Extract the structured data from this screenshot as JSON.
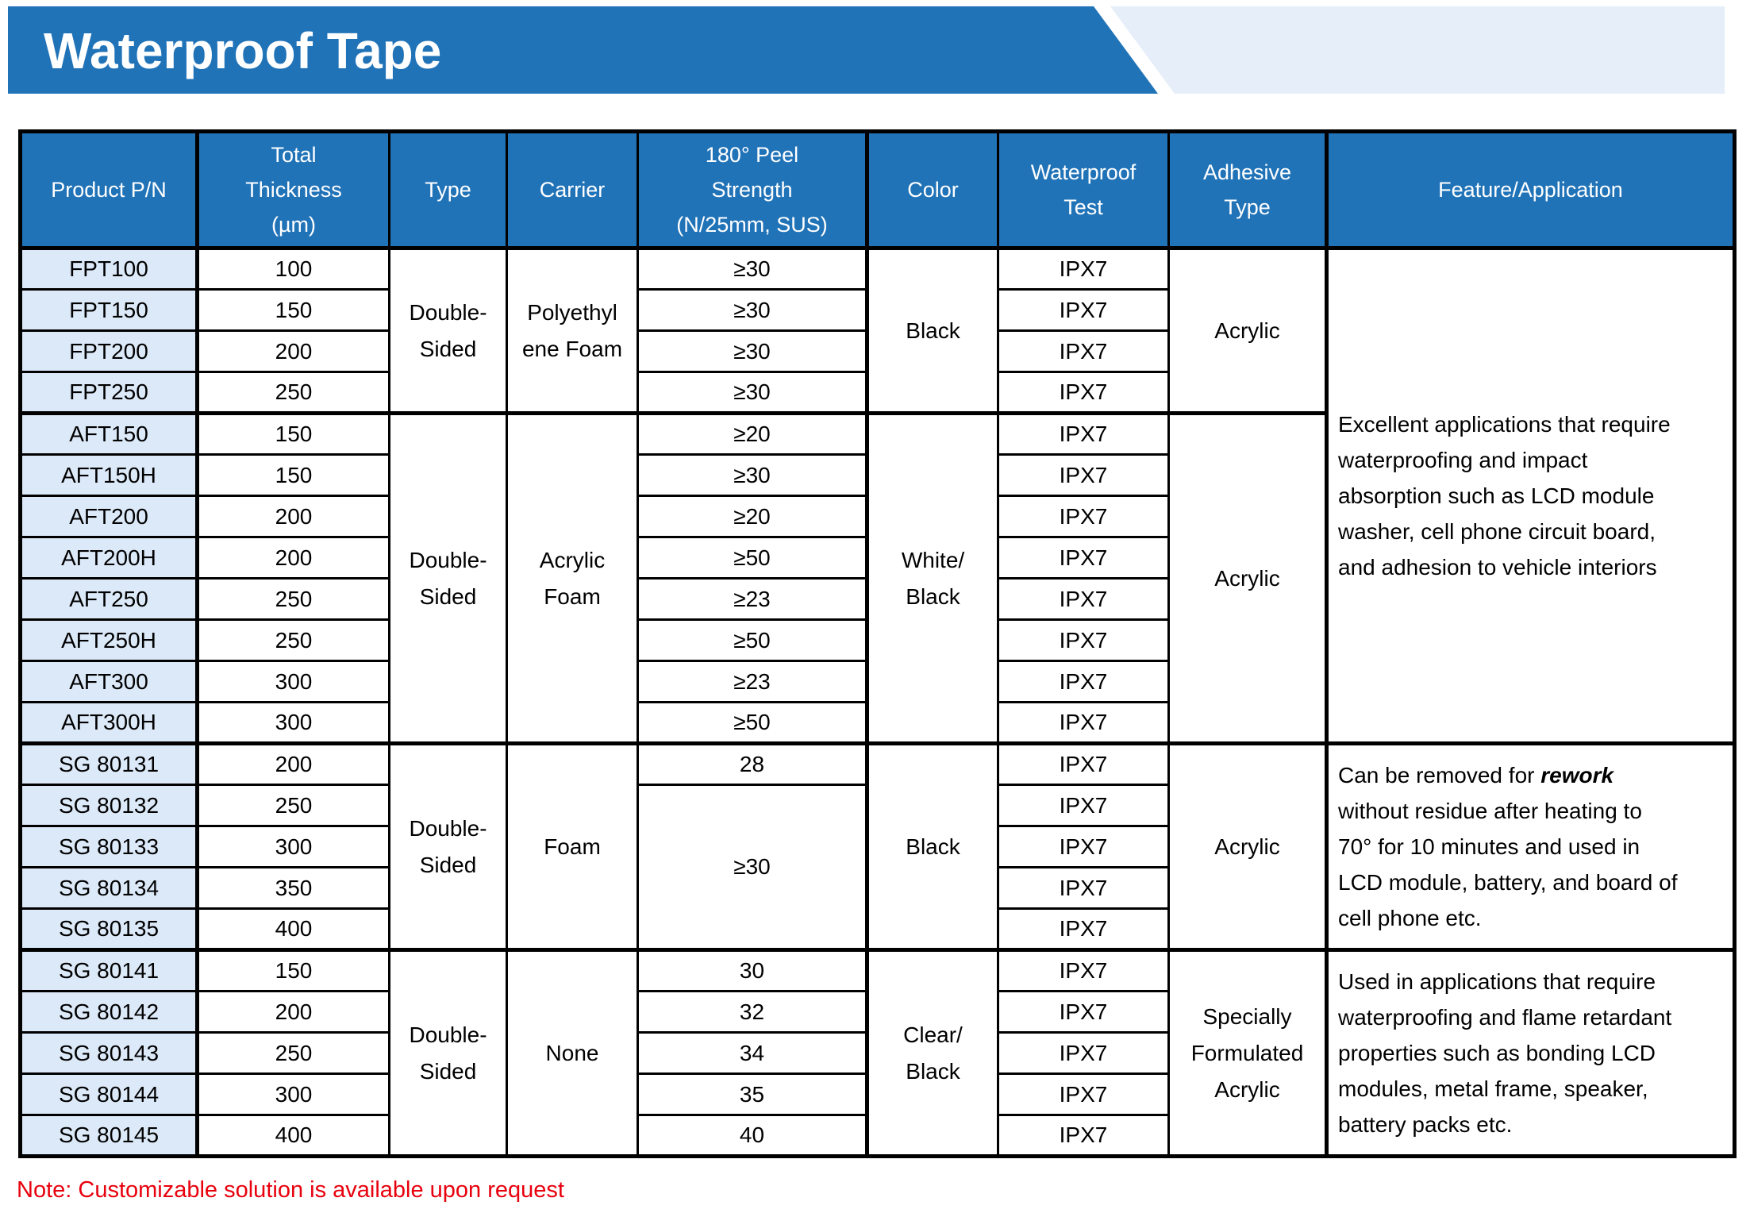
{
  "title": "Waterproof Tape",
  "note": "Note: Customizable solution is available upon request",
  "colors": {
    "header_blue": "#2173b8",
    "accent_band": "#e5eef9",
    "pn_cell": "#dce9f8",
    "note_red": "#e8000d"
  },
  "table": {
    "headers": {
      "product_pn": [
        "Product P/N"
      ],
      "thickness": [
        "Total",
        "Thickness",
        "(µm)"
      ],
      "type": [
        "Type"
      ],
      "carrier": [
        "Carrier"
      ],
      "peel": [
        "180° Peel",
        "Strength",
        "(N/25mm, SUS)"
      ],
      "color": [
        "Color"
      ],
      "test": [
        "Waterproof",
        "Test"
      ],
      "adhesive": [
        "Adhesive",
        "Type"
      ],
      "feature": [
        "Feature/Application"
      ]
    },
    "groups": [
      {
        "type_lines": [
          "Double-",
          "Sided"
        ],
        "carrier_lines": [
          "Polyethyl",
          "ene Foam"
        ],
        "color_lines": [
          "Black"
        ],
        "adhesive_lines": [
          "Acrylic"
        ],
        "rows": [
          {
            "pn": "FPT100",
            "thickness": "100",
            "peel": "≥30",
            "test": "IPX7"
          },
          {
            "pn": "FPT150",
            "thickness": "150",
            "peel": "≥30",
            "test": "IPX7"
          },
          {
            "pn": "FPT200",
            "thickness": "200",
            "peel": "≥30",
            "test": "IPX7"
          },
          {
            "pn": "FPT250",
            "thickness": "250",
            "peel": "≥30",
            "test": "IPX7"
          }
        ]
      },
      {
        "type_lines": [
          "Double-",
          "Sided"
        ],
        "carrier_lines": [
          "Acrylic",
          "Foam"
        ],
        "color_lines": [
          "White/",
          "Black"
        ],
        "adhesive_lines": [
          "Acrylic"
        ],
        "rows": [
          {
            "pn": "AFT150",
            "thickness": "150",
            "peel": "≥20",
            "test": "IPX7"
          },
          {
            "pn": "AFT150H",
            "thickness": "150",
            "peel": "≥30",
            "test": "IPX7"
          },
          {
            "pn": "AFT200",
            "thickness": "200",
            "peel": "≥20",
            "test": "IPX7"
          },
          {
            "pn": "AFT200H",
            "thickness": "200",
            "peel": "≥50",
            "test": "IPX7"
          },
          {
            "pn": "AFT250",
            "thickness": "250",
            "peel": "≥23",
            "test": "IPX7"
          },
          {
            "pn": "AFT250H",
            "thickness": "250",
            "peel": "≥50",
            "test": "IPX7"
          },
          {
            "pn": "AFT300",
            "thickness": "300",
            "peel": "≥23",
            "test": "IPX7"
          },
          {
            "pn": "AFT300H",
            "thickness": "300",
            "peel": "≥50",
            "test": "IPX7"
          }
        ]
      },
      {
        "type_lines": [
          "Double-",
          "Sided"
        ],
        "carrier_lines": [
          "Foam"
        ],
        "color_lines": [
          "Black"
        ],
        "adhesive_lines": [
          "Acrylic"
        ],
        "merged_peel": "≥30",
        "rows": [
          {
            "pn": "SG 80131",
            "thickness": "200",
            "peel": "28",
            "test": "IPX7"
          },
          {
            "pn": "SG 80132",
            "thickness": "250",
            "test": "IPX7"
          },
          {
            "pn": "SG 80133",
            "thickness": "300",
            "test": "IPX7"
          },
          {
            "pn": "SG 80134",
            "thickness": "350",
            "test": "IPX7"
          },
          {
            "pn": "SG 80135",
            "thickness": "400",
            "test": "IPX7"
          }
        ]
      },
      {
        "type_lines": [
          "Double-",
          "Sided"
        ],
        "carrier_lines": [
          "None"
        ],
        "color_lines": [
          "Clear/",
          "Black"
        ],
        "adhesive_lines": [
          "Specially",
          "Formulated",
          "Acrylic"
        ],
        "rows": [
          {
            "pn": "SG 80141",
            "thickness": "150",
            "peel": "30",
            "test": "IPX7"
          },
          {
            "pn": "SG 80142",
            "thickness": "200",
            "peel": "32",
            "test": "IPX7"
          },
          {
            "pn": "SG 80143",
            "thickness": "250",
            "peel": "34",
            "test": "IPX7"
          },
          {
            "pn": "SG 80144",
            "thickness": "300",
            "peel": "35",
            "test": "IPX7"
          },
          {
            "pn": "SG 80145",
            "thickness": "400",
            "peel": "40",
            "test": "IPX7"
          }
        ]
      }
    ],
    "features": [
      {
        "parts": [
          {
            "t": "Excellent applications that require\nwaterproofing and impact\nabsorption such as LCD module\nwasher, cell phone circuit board,\nand adhesion to vehicle interiors"
          }
        ]
      },
      {
        "parts": [
          {
            "t": "Can be removed for "
          },
          {
            "t": "rework",
            "bi": true
          },
          {
            "t": "\nwithout residue after heating to\n70° for 10 minutes and used in\nLCD module, battery, and board of\ncell phone etc."
          }
        ]
      },
      {
        "parts": [
          {
            "t": "Used in applications that require\nwaterproofing and flame retardant\nproperties such as bonding LCD\nmodules, metal frame, speaker,\nbattery packs etc."
          }
        ]
      }
    ]
  }
}
